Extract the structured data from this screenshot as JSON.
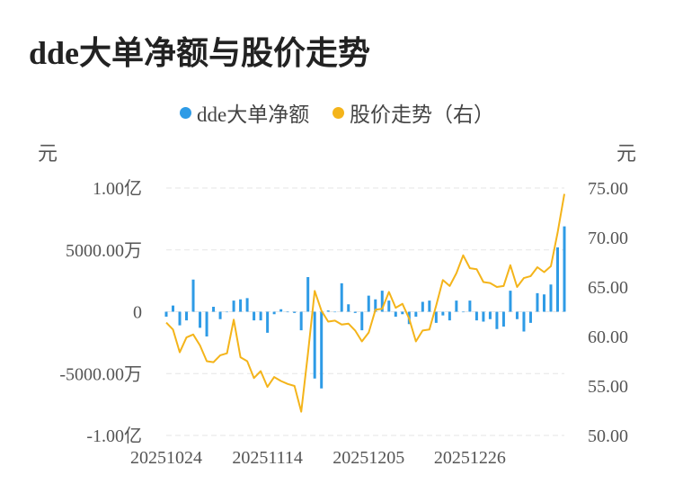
{
  "page": {
    "title": "dde大单净额与股价走势"
  },
  "chart_data": {
    "type": "bar+line",
    "legend": [
      {
        "label": "dde大单净额",
        "color": "#2e9be6"
      },
      {
        "label": "股价走势（右）",
        "color": "#f4b41a"
      }
    ],
    "left_unit": "元",
    "right_unit": "元",
    "left_ticks": [
      {
        "value": 10000,
        "label": "1.00亿"
      },
      {
        "value": 5000,
        "label": "5000.00万"
      },
      {
        "value": 0,
        "label": "0"
      },
      {
        "value": -5000,
        "label": "-5000.00万"
      },
      {
        "value": -10000,
        "label": "-1.00亿"
      }
    ],
    "right_ticks": [
      "75.00",
      "70.00",
      "65.00",
      "60.00",
      "55.00",
      "50.00"
    ],
    "left_ylim": [
      -10000,
      10000
    ],
    "right_ylim": [
      50,
      75
    ],
    "x_tick_labels": [
      {
        "index": 0,
        "label": "20251024"
      },
      {
        "index": 15,
        "label": "20251114"
      },
      {
        "index": 30,
        "label": "20251205"
      },
      {
        "index": 45,
        "label": "20251226"
      }
    ],
    "grid": true,
    "dde_net_wan": [
      -400,
      500,
      -1100,
      -700,
      2600,
      -1300,
      -2000,
      400,
      -600,
      0,
      900,
      1000,
      1100,
      -700,
      -700,
      -1700,
      -200,
      200,
      0,
      -100,
      -1500,
      2800,
      -5400,
      -6200,
      100,
      0,
      2300,
      600,
      -100,
      -1500,
      1300,
      1000,
      1700,
      900,
      -400,
      -200,
      -1000,
      -400,
      800,
      900,
      -900,
      -300,
      -700,
      900,
      0,
      900,
      -700,
      -800,
      -600,
      -1400,
      -1200,
      1700,
      -600,
      -1600,
      -900,
      1500,
      1400,
      2200,
      5200,
      6900
    ],
    "price": [
      61.4,
      60.7,
      58.4,
      59.9,
      60.2,
      59.1,
      57.5,
      57.4,
      58.1,
      58.3,
      61.7,
      57.9,
      57.5,
      55.8,
      56.5,
      54.9,
      55.9,
      55.5,
      55.2,
      55.0,
      52.4,
      58.3,
      64.6,
      62.6,
      61.5,
      61.6,
      61.2,
      61.3,
      60.6,
      59.5,
      60.4,
      62.7,
      62.8,
      64.5,
      62.9,
      63.3,
      61.8,
      59.5,
      60.6,
      60.7,
      63.1,
      65.7,
      65.1,
      66.4,
      68.2,
      66.9,
      66.8,
      65.5,
      65.4,
      65.0,
      65.1,
      67.2,
      65.0,
      65.9,
      66.1,
      67.0,
      66.5,
      67.1,
      70.5,
      74.4
    ]
  }
}
